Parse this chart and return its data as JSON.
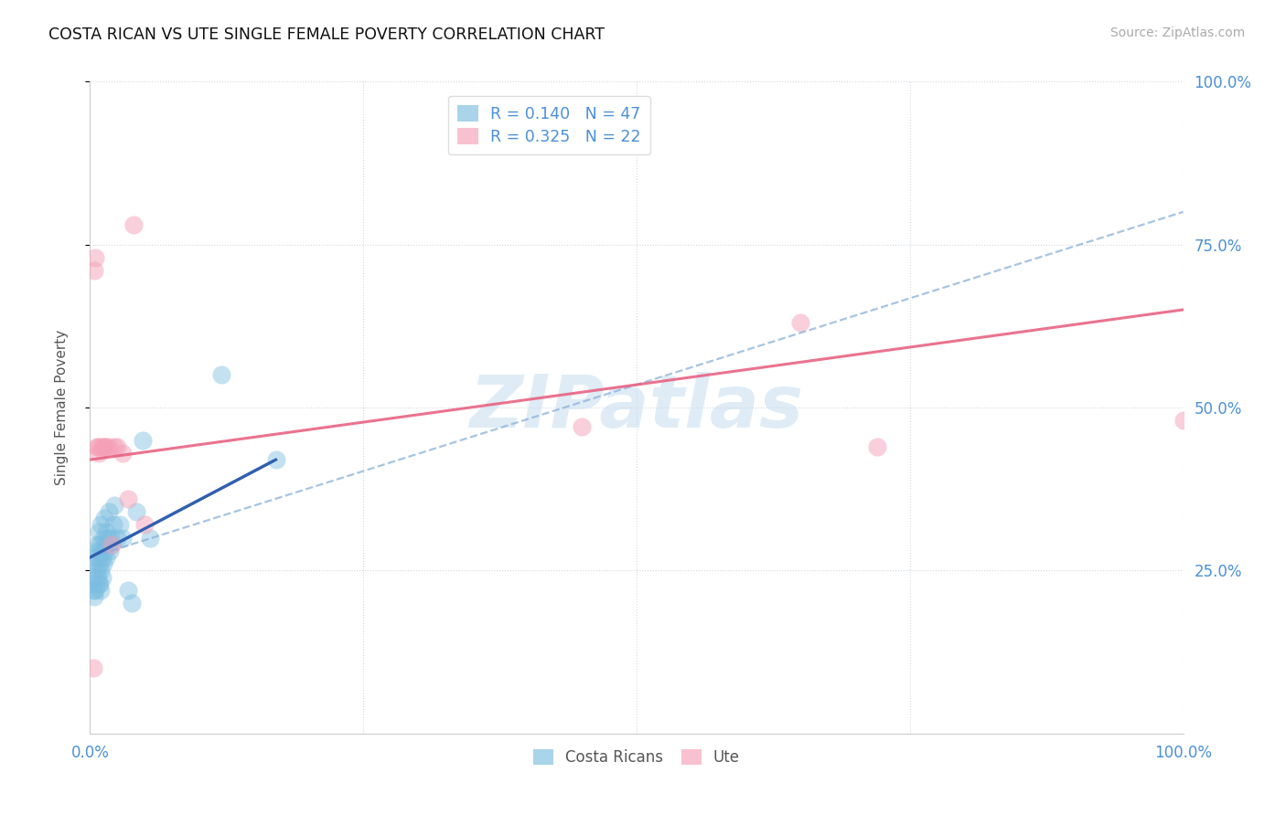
{
  "title": "COSTA RICAN VS UTE SINGLE FEMALE POVERTY CORRELATION CHART",
  "source": "Source: ZipAtlas.com",
  "ylabel": "Single Female Poverty",
  "xlim": [
    0,
    1.0
  ],
  "ylim": [
    0,
    1.0
  ],
  "blue_R": 0.14,
  "blue_N": 47,
  "pink_R": 0.325,
  "pink_N": 22,
  "blue_color": "#7bbde0",
  "pink_color": "#f5a0b8",
  "blue_line_color": "#3060b0",
  "pink_line_color": "#e86080",
  "dashed_line_color": "#8ab0d8",
  "watermark_text": "ZIPatlas",
  "watermark_color": "#c5ddf0",
  "legend_label_blue": "Costa Ricans",
  "legend_label_pink": "Ute",
  "blue_line_x0": 0.0,
  "blue_line_y0": 0.27,
  "blue_line_x1": 0.17,
  "blue_line_y1": 0.42,
  "dashed_line_x0": 0.0,
  "dashed_line_y0": 0.27,
  "dashed_line_x1": 1.0,
  "dashed_line_y1": 0.8,
  "pink_line_x0": 0.0,
  "pink_line_y0": 0.42,
  "pink_line_x1": 1.0,
  "pink_line_y1": 0.65,
  "costa_rican_x": [
    0.002,
    0.003,
    0.003,
    0.004,
    0.004,
    0.005,
    0.005,
    0.006,
    0.006,
    0.007,
    0.007,
    0.008,
    0.008,
    0.008,
    0.009,
    0.009,
    0.009,
    0.01,
    0.01,
    0.01,
    0.01,
    0.011,
    0.011,
    0.012,
    0.012,
    0.013,
    0.013,
    0.014,
    0.015,
    0.015,
    0.016,
    0.017,
    0.018,
    0.019,
    0.02,
    0.021,
    0.022,
    0.025,
    0.027,
    0.03,
    0.035,
    0.038,
    0.042,
    0.048,
    0.055,
    0.12,
    0.17
  ],
  "costa_rican_y": [
    0.23,
    0.22,
    0.26,
    0.21,
    0.24,
    0.22,
    0.27,
    0.25,
    0.29,
    0.24,
    0.28,
    0.23,
    0.27,
    0.31,
    0.23,
    0.26,
    0.29,
    0.22,
    0.25,
    0.28,
    0.32,
    0.24,
    0.27,
    0.26,
    0.3,
    0.28,
    0.33,
    0.29,
    0.27,
    0.31,
    0.3,
    0.34,
    0.28,
    0.3,
    0.29,
    0.32,
    0.35,
    0.3,
    0.32,
    0.3,
    0.22,
    0.2,
    0.34,
    0.45,
    0.3,
    0.55,
    0.42
  ],
  "ute_x": [
    0.003,
    0.004,
    0.005,
    0.006,
    0.007,
    0.008,
    0.01,
    0.012,
    0.013,
    0.015,
    0.017,
    0.02,
    0.022,
    0.025,
    0.03,
    0.035,
    0.04,
    0.05,
    0.45,
    0.65,
    0.72,
    1.0
  ],
  "ute_y": [
    0.1,
    0.71,
    0.73,
    0.44,
    0.44,
    0.43,
    0.44,
    0.44,
    0.44,
    0.44,
    0.44,
    0.29,
    0.44,
    0.44,
    0.43,
    0.36,
    0.78,
    0.32,
    0.47,
    0.63,
    0.44,
    0.48
  ]
}
